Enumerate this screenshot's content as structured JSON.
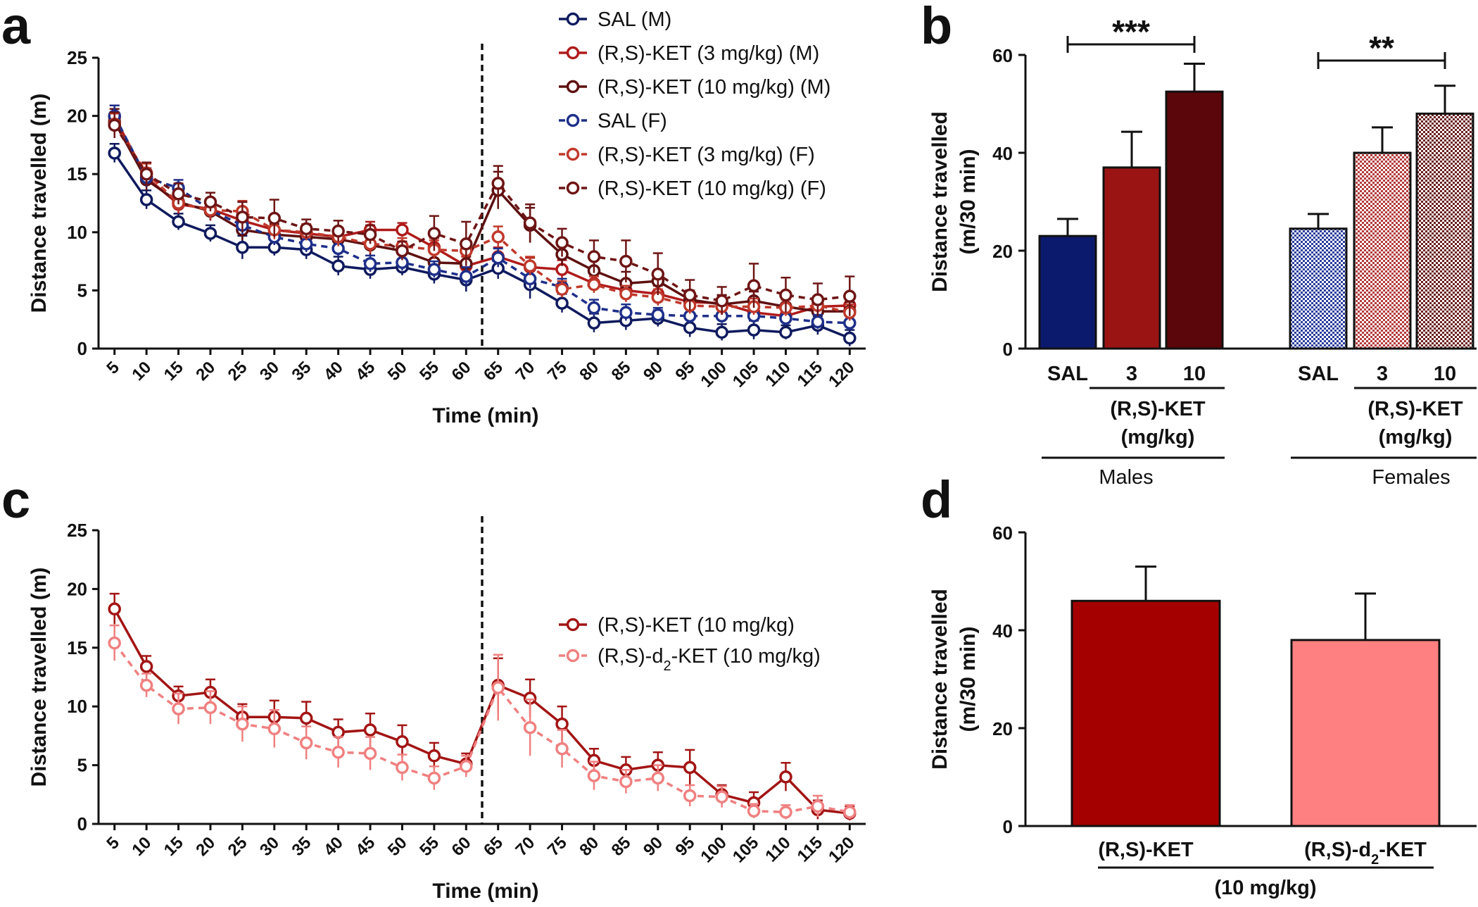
{
  "panel_labels": {
    "a": "a",
    "b": "b",
    "c": "c",
    "d": "d"
  },
  "chart_data": [
    {
      "id": "a",
      "type": "line",
      "ylabel": "Distance travelled (m)",
      "xlabel": "Time (min)",
      "ylim": [
        0,
        25
      ],
      "yticks": [
        "0",
        "5",
        "10",
        "15",
        "20",
        "25"
      ],
      "x": [
        5,
        10,
        15,
        20,
        25,
        30,
        35,
        40,
        45,
        50,
        55,
        60,
        65,
        70,
        75,
        80,
        85,
        90,
        95,
        100,
        105,
        110,
        115,
        120
      ],
      "xticks": [
        "5",
        "10",
        "15",
        "20",
        "25",
        "30",
        "35",
        "40",
        "45",
        "50",
        "55",
        "60",
        "65",
        "70",
        "75",
        "80",
        "85",
        "90",
        "95",
        "100",
        "105",
        "110",
        "115",
        "120"
      ],
      "vline_after_index": 11,
      "series": [
        {
          "name": "SAL (M)",
          "color": "#0f1a5e",
          "dashed": false,
          "values": [
            16.8,
            12.8,
            10.9,
            9.9,
            8.7,
            8.7,
            8.5,
            7.1,
            6.8,
            7.0,
            6.4,
            5.9,
            6.9,
            5.5,
            3.9,
            2.2,
            2.4,
            2.6,
            1.8,
            1.4,
            1.6,
            1.4,
            2.0,
            0.9
          ],
          "err": [
            0.8,
            0.8,
            0.7,
            0.7,
            1.0,
            0.7,
            0.8,
            0.8,
            0.8,
            0.7,
            0.8,
            1.0,
            0.9,
            1.2,
            0.8,
            0.8,
            0.8,
            0.7,
            0.8,
            0.7,
            0.8,
            0.6,
            0.8,
            0.7
          ]
        },
        {
          "name": "(R,S)-KET (3 mg/kg) (M)",
          "color": "#b01b1b",
          "dashed": false,
          "values": [
            19.9,
            14.7,
            12.4,
            12.0,
            11.0,
            10.2,
            9.9,
            9.6,
            10.2,
            10.2,
            8.7,
            7.1,
            7.9,
            7.0,
            6.8,
            5.6,
            5.0,
            4.7,
            4.0,
            3.9,
            3.1,
            2.8,
            3.6,
            3.7
          ],
          "err": [
            1.0,
            0.8,
            0.8,
            0.7,
            0.8,
            0.8,
            0.7,
            0.8,
            0.7,
            0.6,
            0.8,
            0.8,
            0.8,
            0.8,
            0.8,
            0.8,
            0.7,
            0.7,
            0.7,
            0.7,
            0.7,
            0.7,
            0.7,
            0.8
          ]
        },
        {
          "name": "(R,S)-KET (10 mg/kg) (M)",
          "color": "#5e1010",
          "dashed": false,
          "values": [
            19.5,
            14.5,
            12.6,
            11.8,
            10.2,
            9.8,
            9.6,
            9.4,
            8.9,
            8.4,
            7.4,
            7.3,
            13.6,
            10.6,
            8.1,
            6.7,
            5.6,
            5.8,
            4.2,
            3.8,
            4.1,
            3.6,
            3.2,
            3.2
          ],
          "err": [
            1.1,
            0.9,
            0.8,
            0.8,
            0.9,
            0.9,
            0.8,
            0.8,
            0.9,
            0.8,
            0.8,
            0.9,
            1.6,
            1.5,
            1.0,
            1.0,
            1.0,
            0.9,
            0.8,
            0.8,
            0.8,
            0.8,
            0.8,
            0.8
          ]
        },
        {
          "name": "SAL (F)",
          "color": "#1e2f8a",
          "dashed": true,
          "values": [
            20.0,
            14.7,
            13.8,
            11.9,
            10.6,
            9.6,
            9.0,
            8.6,
            7.3,
            7.4,
            6.8,
            6.2,
            7.8,
            6.0,
            5.3,
            3.5,
            3.1,
            2.9,
            2.8,
            2.8,
            2.8,
            2.6,
            2.3,
            2.2
          ],
          "err": [
            0.9,
            0.8,
            0.7,
            0.8,
            0.8,
            0.7,
            0.7,
            0.7,
            0.7,
            0.7,
            0.7,
            0.8,
            0.8,
            0.8,
            0.7,
            0.7,
            0.7,
            0.6,
            0.6,
            0.6,
            0.6,
            0.6,
            0.6,
            0.6
          ]
        },
        {
          "name": "(R,S)-KET (3 mg/kg) (F)",
          "color": "#c0392b",
          "dashed": true,
          "values": [
            19.3,
            15.1,
            12.5,
            11.9,
            11.8,
            10.2,
            10.0,
            9.6,
            9.0,
            8.8,
            8.5,
            8.4,
            9.6,
            7.1,
            5.1,
            5.5,
            4.7,
            4.4,
            3.7,
            3.6,
            3.6,
            3.5,
            3.7,
            3.1
          ],
          "err": [
            0.9,
            0.8,
            0.8,
            0.8,
            0.9,
            0.8,
            0.7,
            0.8,
            0.8,
            0.7,
            0.8,
            0.8,
            0.9,
            0.8,
            0.7,
            0.7,
            0.7,
            0.7,
            0.7,
            0.7,
            0.7,
            0.7,
            0.7,
            0.7
          ]
        },
        {
          "name": "(R,S)-KET (10 mg/kg) (F)",
          "color": "#6e1515",
          "dashed": true,
          "values": [
            19.2,
            15.0,
            13.3,
            12.6,
            11.3,
            11.2,
            10.3,
            10.1,
            9.8,
            8.4,
            9.9,
            9.0,
            14.2,
            10.8,
            9.1,
            7.9,
            7.5,
            6.4,
            4.6,
            4.1,
            5.4,
            4.6,
            4.2,
            4.5
          ],
          "err": [
            1.1,
            1.0,
            0.9,
            0.8,
            1.3,
            1.6,
            0.8,
            0.9,
            0.8,
            0.8,
            1.5,
            1.9,
            1.5,
            1.6,
            1.2,
            1.4,
            1.8,
            1.8,
            1.3,
            1.2,
            1.9,
            1.5,
            1.4,
            1.7
          ]
        }
      ]
    },
    {
      "id": "b",
      "type": "bar",
      "ylabel_lines": [
        "Distance travelled",
        "(m/30 min)"
      ],
      "ylim": [
        0,
        60
      ],
      "yticks": [
        "0",
        "20",
        "40",
        "60"
      ],
      "bars": [
        {
          "label": "SAL",
          "value": 23.0,
          "err": 3.5,
          "color": "#0c1a6e",
          "pattern": "solid"
        },
        {
          "label": "3",
          "value": 37.0,
          "err": 7.3,
          "color": "#9b1414",
          "pattern": "solid"
        },
        {
          "label": "10",
          "value": 52.5,
          "err": 5.7,
          "color": "#5a060a",
          "pattern": "solid"
        },
        {
          "label": "SAL",
          "value": 24.5,
          "err": 3.0,
          "color": "#2a3d9c",
          "pattern": "check"
        },
        {
          "label": "3",
          "value": 40.0,
          "err": 5.2,
          "color": "#b33a3a",
          "pattern": "check"
        },
        {
          "label": "10",
          "value": 48.0,
          "err": 5.7,
          "color": "#7a2a2a",
          "pattern": "check"
        }
      ],
      "dose_label_lines": [
        "(R,S)-KET",
        "(mg/kg)"
      ],
      "groups": [
        "Males",
        "Females"
      ],
      "significance": [
        "***",
        "**"
      ]
    },
    {
      "id": "c",
      "type": "line",
      "ylabel": "Distance travelled (m)",
      "xlabel": "Time (min)",
      "ylim": [
        0,
        25
      ],
      "yticks": [
        "0",
        "5",
        "10",
        "15",
        "20",
        "25"
      ],
      "x": [
        5,
        10,
        15,
        20,
        25,
        30,
        35,
        40,
        45,
        50,
        55,
        60,
        65,
        70,
        75,
        80,
        85,
        90,
        95,
        100,
        105,
        110,
        115,
        120
      ],
      "xticks": [
        "5",
        "10",
        "15",
        "20",
        "25",
        "30",
        "35",
        "40",
        "45",
        "50",
        "55",
        "60",
        "65",
        "70",
        "75",
        "80",
        "85",
        "90",
        "95",
        "100",
        "105",
        "110",
        "115",
        "120"
      ],
      "vline_after_index": 11,
      "series": [
        {
          "name": "(R,S)-KET (10 mg/kg)",
          "color": "#a31414",
          "dashed": false,
          "values": [
            18.3,
            13.4,
            10.9,
            11.2,
            9.1,
            9.1,
            9.0,
            7.8,
            8.0,
            7.0,
            5.8,
            5.1,
            11.8,
            10.7,
            8.5,
            5.4,
            4.6,
            5.0,
            4.8,
            2.5,
            1.8,
            4.0,
            1.2,
            0.9
          ],
          "err": [
            1.3,
            0.9,
            0.8,
            1.1,
            1.1,
            1.4,
            1.4,
            1.1,
            1.4,
            1.4,
            1.1,
            0.9,
            2.3,
            1.6,
            1.5,
            1.0,
            1.1,
            1.1,
            1.5,
            0.8,
            0.9,
            1.2,
            0.8,
            0.6
          ]
        },
        {
          "name": "(R,S)-d2-KET (10 mg/kg)",
          "color": "#f08080",
          "dashed": true,
          "values": [
            15.4,
            11.8,
            9.8,
            9.9,
            8.5,
            8.1,
            6.9,
            6.1,
            6.0,
            4.8,
            3.9,
            4.9,
            11.6,
            8.2,
            6.4,
            4.1,
            3.6,
            3.9,
            2.4,
            2.3,
            1.1,
            1.0,
            1.5,
            1.0
          ],
          "err": [
            1.5,
            1.0,
            1.3,
            1.4,
            1.5,
            1.6,
            1.4,
            1.3,
            1.4,
            1.1,
            1.0,
            0.9,
            2.8,
            2.4,
            1.6,
            1.2,
            1.0,
            1.1,
            0.9,
            0.9,
            0.6,
            0.6,
            0.9,
            0.6
          ]
        }
      ],
      "legend_entries": [
        {
          "text": "(R,S)-KET (10 mg/kg)"
        },
        {
          "text_pre": "(R,S)-d",
          "sub": "2",
          "text_post": "-KET (10 mg/kg)"
        }
      ]
    },
    {
      "id": "d",
      "type": "bar",
      "ylabel_lines": [
        "Distance travelled",
        "(m/30 min)"
      ],
      "ylim": [
        0,
        60
      ],
      "yticks": [
        "0",
        "20",
        "40",
        "60"
      ],
      "bars": [
        {
          "label": "(R,S)-KET",
          "value": 46.0,
          "err": 7.0,
          "color": "#a50000"
        },
        {
          "label_pre": "(R,S)-d",
          "label_sub": "2",
          "label_post": "-KET",
          "value": 38.0,
          "err": 9.5,
          "color": "#ff8080"
        }
      ],
      "group_label": "(10 mg/kg)"
    }
  ]
}
